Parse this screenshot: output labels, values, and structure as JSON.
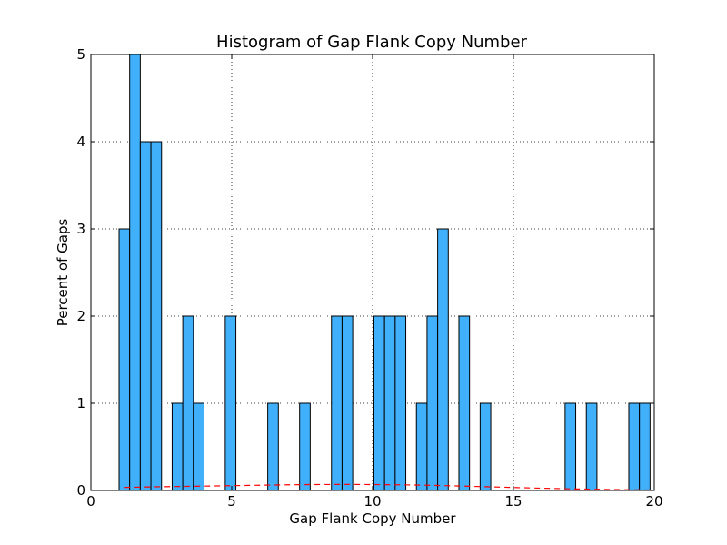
{
  "chart_data": {
    "type": "bar",
    "title": "Histogram of Gap Flank Copy Number",
    "xlabel": "Gap Flank Copy Number",
    "ylabel": "Percent of Gaps",
    "xlim": [
      0,
      20
    ],
    "ylim": [
      0,
      5
    ],
    "xticks": [
      "0",
      "5",
      "10",
      "15",
      "20"
    ],
    "yticks": [
      "0",
      "1",
      "2",
      "3",
      "4",
      "5"
    ],
    "grid": true,
    "bin_width": 0.377,
    "bars": [
      {
        "x": 1.0,
        "value": 3
      },
      {
        "x": 1.377,
        "value": 5
      },
      {
        "x": 1.754,
        "value": 4
      },
      {
        "x": 2.131,
        "value": 4
      },
      {
        "x": 2.885,
        "value": 1
      },
      {
        "x": 3.262,
        "value": 2
      },
      {
        "x": 3.639,
        "value": 1
      },
      {
        "x": 4.77,
        "value": 2
      },
      {
        "x": 6.278,
        "value": 1
      },
      {
        "x": 7.409,
        "value": 1
      },
      {
        "x": 8.54,
        "value": 2
      },
      {
        "x": 8.917,
        "value": 2
      },
      {
        "x": 10.048,
        "value": 2
      },
      {
        "x": 10.425,
        "value": 2
      },
      {
        "x": 10.802,
        "value": 2
      },
      {
        "x": 11.556,
        "value": 1
      },
      {
        "x": 11.933,
        "value": 2
      },
      {
        "x": 12.31,
        "value": 3
      },
      {
        "x": 13.064,
        "value": 2
      },
      {
        "x": 13.818,
        "value": 1
      },
      {
        "x": 16.834,
        "value": 1
      },
      {
        "x": 17.588,
        "value": 1
      },
      {
        "x": 19.096,
        "value": 1
      },
      {
        "x": 19.473,
        "value": 1
      }
    ],
    "fit_line": {
      "style": "dashed",
      "color": "#ff0000",
      "x": [
        1.2,
        2,
        3,
        4,
        5,
        6,
        7,
        8,
        9,
        10,
        11,
        12,
        13,
        14,
        15,
        16,
        17,
        18,
        19,
        20
      ],
      "y": [
        0.035,
        0.04,
        0.045,
        0.05,
        0.055,
        0.06,
        0.065,
        0.068,
        0.069,
        0.068,
        0.065,
        0.06,
        0.052,
        0.043,
        0.034,
        0.026,
        0.019,
        0.013,
        0.008,
        0.005
      ]
    },
    "colors": {
      "bar_fill": "#3fb0f9",
      "bar_edge": "#000000",
      "grid": "#000000"
    }
  }
}
